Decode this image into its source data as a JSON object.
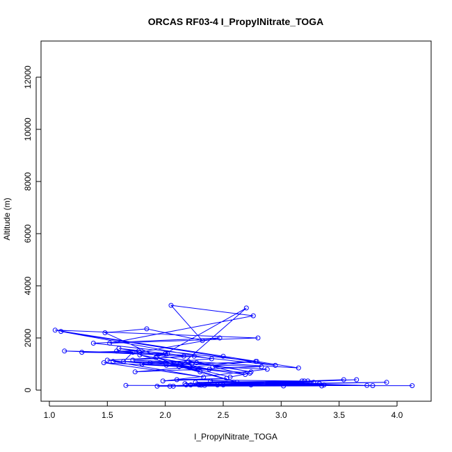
{
  "chart_data": {
    "type": "line",
    "title": "ORCAS RF03-4 I_PropylNitrate_TOGA",
    "xlabel": "I_PropylNitrate_TOGA",
    "ylabel": "Altitude (m)",
    "xlim": [
      1.0,
      4.2
    ],
    "ylim": [
      0,
      13000
    ],
    "x_ticks": [
      "1.0",
      "1.5",
      "2.0",
      "2.5",
      "3.0",
      "3.5",
      "4.0"
    ],
    "y_ticks": [
      "0",
      "2000",
      "4000",
      "6000",
      "8000",
      "10000",
      "12000"
    ],
    "grid": false,
    "series_color": "#0000ff",
    "series": [
      {
        "x": [
          1.66,
          4.13,
          2.34,
          3.91,
          2.18,
          3.65,
          2.5,
          3.35,
          2.04,
          3.28,
          2.22,
          3.54,
          2.31,
          3.02,
          1.93,
          3.2,
          2.45,
          2.07,
          2.74,
          3.37,
          2.39,
          3.79,
          2.29,
          3.74,
          2.17,
          3.23,
          2.26,
          3.33,
          2.59,
          3.18,
          2.1,
          2.53,
          1.98,
          2.88,
          2.41,
          2.69,
          1.87,
          2.83,
          1.74,
          2.78,
          2.01,
          2.73,
          2.56,
          2.1,
          2.62,
          2.0,
          2.38,
          1.92,
          2.3,
          1.78,
          2.23,
          1.55,
          2.33,
          1.47,
          2.12,
          1.5,
          2.25,
          1.13,
          2.02,
          1.28,
          1.77,
          1.58,
          1.72,
          1.64,
          2.27,
          1.72,
          2.16,
          1.78,
          2.47,
          1.38,
          2.79,
          1.05,
          2.8,
          1.52,
          2.76,
          2.05,
          2.32,
          1.84,
          1.48,
          1.93,
          2.0,
          2.7,
          2.12,
          1.8,
          2.4,
          1.1,
          2.95,
          1.6,
          2.74,
          2.2,
          3.15,
          2.5
        ],
        "y": [
          180,
          170,
          180,
          300,
          200,
          400,
          200,
          160,
          150,
          300,
          200,
          400,
          190,
          160,
          150,
          350,
          200,
          150,
          200,
          200,
          350,
          170,
          200,
          180,
          250,
          350,
          300,
          250,
          300,
          350,
          400,
          450,
          350,
          800,
          900,
          600,
          1050,
          900,
          700,
          1100,
          950,
          650,
          500,
          1000,
          300,
          1050,
          800,
          1250,
          700,
          1350,
          1000,
          1100,
          500,
          1050,
          900,
          1150,
          1300,
          1500,
          1400,
          1450,
          1500,
          1500,
          1450,
          1100,
          1050,
          1150,
          1300,
          1450,
          2000,
          1800,
          1100,
          2300,
          2000,
          1800,
          2850,
          3250,
          1900,
          2350,
          2200,
          1300,
          1400,
          3150,
          900,
          1000,
          1200,
          2250,
          950,
          1600,
          700,
          1100,
          850,
          1300
        ]
      }
    ]
  }
}
